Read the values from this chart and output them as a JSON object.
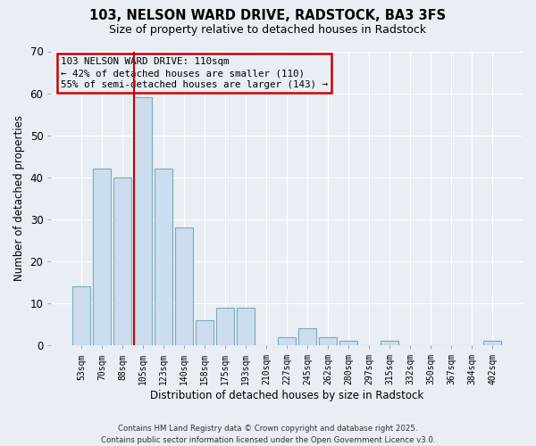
{
  "title": "103, NELSON WARD DRIVE, RADSTOCK, BA3 3FS",
  "subtitle": "Size of property relative to detached houses in Radstock",
  "xlabel": "Distribution of detached houses by size in Radstock",
  "ylabel": "Number of detached properties",
  "bar_color": "#ccdded",
  "bar_edge_color": "#7aaabb",
  "background_color": "#e8eef4",
  "grid_color": "#ffffff",
  "vline_color": "#cc0000",
  "annotation_line1": "103 NELSON WARD DRIVE: 110sqm",
  "annotation_line2": "← 42% of detached houses are smaller (110)",
  "annotation_line3": "55% of semi-detached houses are larger (143) →",
  "annotation_box_color": "#cc0000",
  "categories": [
    "53sqm",
    "70sqm",
    "88sqm",
    "105sqm",
    "123sqm",
    "140sqm",
    "158sqm",
    "175sqm",
    "193sqm",
    "210sqm",
    "227sqm",
    "245sqm",
    "262sqm",
    "280sqm",
    "297sqm",
    "315sqm",
    "332sqm",
    "350sqm",
    "367sqm",
    "384sqm",
    "402sqm"
  ],
  "values": [
    14,
    42,
    40,
    59,
    42,
    28,
    6,
    9,
    9,
    0,
    2,
    4,
    2,
    1,
    0,
    1,
    0,
    0,
    0,
    0,
    1
  ],
  "vline_index": 3,
  "ylim": [
    0,
    70
  ],
  "yticks": [
    0,
    10,
    20,
    30,
    40,
    50,
    60,
    70
  ],
  "footer_line1": "Contains HM Land Registry data © Crown copyright and database right 2025.",
  "footer_line2": "Contains public sector information licensed under the Open Government Licence v3.0."
}
